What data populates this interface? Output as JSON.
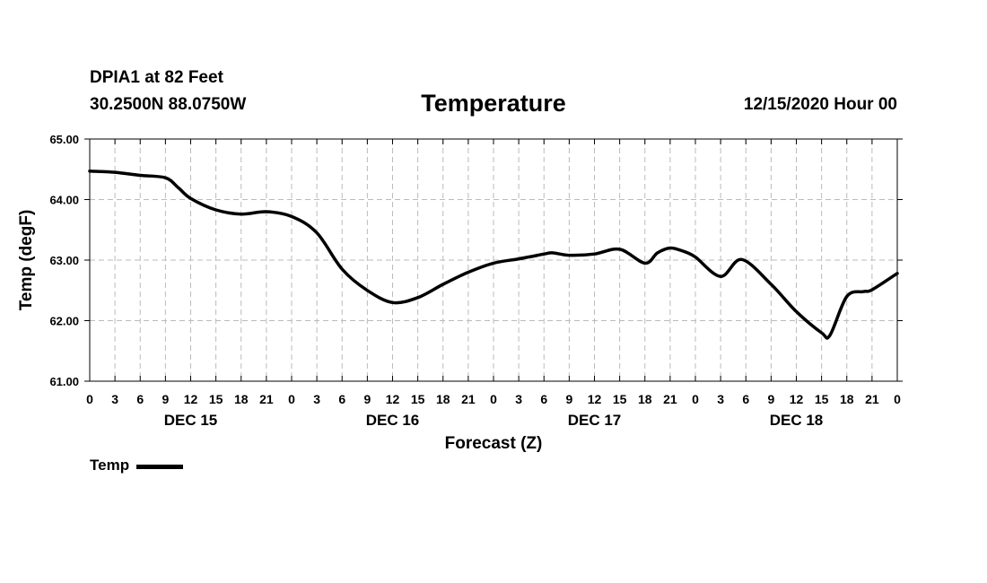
{
  "header": {
    "station": "DPIA1 at 82 Feet",
    "coords": "30.2500N 88.0750W",
    "title": "Temperature",
    "datetime": "12/15/2020 Hour 00"
  },
  "legend": {
    "label": "Temp"
  },
  "colors": {
    "line": "#000000",
    "grid": "#bbbbbb",
    "background": "#ffffff"
  },
  "chart_data": {
    "type": "line",
    "title": "Temperature",
    "xlabel": "Forecast (Z)",
    "ylabel": "Temp (degF)",
    "ylim": [
      61.0,
      65.0
    ],
    "yticks": [
      "61.00",
      "62.00",
      "63.00",
      "64.00",
      "65.00"
    ],
    "xlim_hours": [
      0,
      96
    ],
    "xtick_labels": [
      "0",
      "3",
      "6",
      "9",
      "12",
      "15",
      "18",
      "21",
      "0",
      "3",
      "6",
      "9",
      "12",
      "15",
      "18",
      "21",
      "0",
      "3",
      "6",
      "9",
      "12",
      "15",
      "18",
      "21",
      "0",
      "3",
      "6",
      "9",
      "12",
      "15",
      "18",
      "21",
      "0"
    ],
    "day_labels": [
      {
        "label": "DEC 15",
        "hour": 12
      },
      {
        "label": "DEC 16",
        "hour": 36
      },
      {
        "label": "DEC 17",
        "hour": 60
      },
      {
        "label": "DEC 18",
        "hour": 84
      }
    ],
    "grid": true,
    "series": [
      {
        "name": "Temp",
        "x": [
          0,
          3,
          6,
          9,
          10.5,
          12,
          15,
          18,
          21,
          24,
          27,
          30,
          33,
          36,
          39,
          42,
          45,
          48,
          51,
          54,
          55,
          57,
          60,
          63,
          66,
          67.5,
          69,
          70.5,
          72,
          75,
          77.5,
          81,
          84,
          87,
          88,
          90,
          92,
          93,
          96
        ],
        "values": [
          64.47,
          64.45,
          64.4,
          64.36,
          64.2,
          64.02,
          63.83,
          63.76,
          63.8,
          63.72,
          63.45,
          62.85,
          62.5,
          62.3,
          62.38,
          62.6,
          62.8,
          62.95,
          63.02,
          63.1,
          63.12,
          63.08,
          63.1,
          63.18,
          62.95,
          63.12,
          63.2,
          63.15,
          63.05,
          62.73,
          63.01,
          62.6,
          62.15,
          61.8,
          61.76,
          62.4,
          62.48,
          62.51,
          62.78
        ]
      }
    ]
  }
}
